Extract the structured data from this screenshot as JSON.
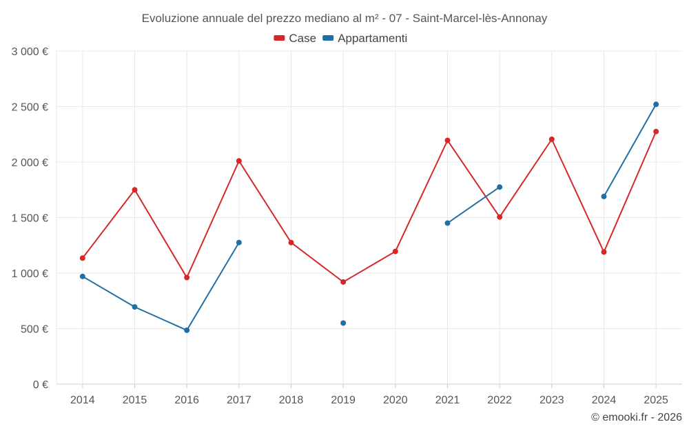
{
  "chart_data": {
    "type": "line",
    "title": "Evoluzione annuale del prezzo mediano al m² - 07 - Saint-Marcel-lès-Annonay",
    "categories": [
      "2014",
      "2015",
      "2016",
      "2017",
      "2018",
      "2019",
      "2020",
      "2021",
      "2022",
      "2023",
      "2024",
      "2025"
    ],
    "ylim": [
      0,
      3000
    ],
    "yticks": [
      {
        "value": 0,
        "label": "0 €"
      },
      {
        "value": 500,
        "label": "500 €"
      },
      {
        "value": 1000,
        "label": "1 000 €"
      },
      {
        "value": 1500,
        "label": "1 500 €"
      },
      {
        "value": 2000,
        "label": "2 000 €"
      },
      {
        "value": 2500,
        "label": "2 500 €"
      },
      {
        "value": 3000,
        "label": "3 000 €"
      }
    ],
    "series": [
      {
        "name": "Case",
        "color": "#d62728",
        "values": [
          1135,
          1750,
          960,
          2010,
          1275,
          920,
          1195,
          2195,
          1505,
          2205,
          1190,
          2275
        ]
      },
      {
        "name": "Appartamenti",
        "color": "#1f6fa5",
        "values": [
          970,
          695,
          485,
          1275,
          null,
          550,
          null,
          1450,
          1775,
          null,
          1690,
          2520
        ]
      }
    ],
    "legend": "top-center",
    "grid": true
  },
  "credit": "© emooki.fr - 2026"
}
